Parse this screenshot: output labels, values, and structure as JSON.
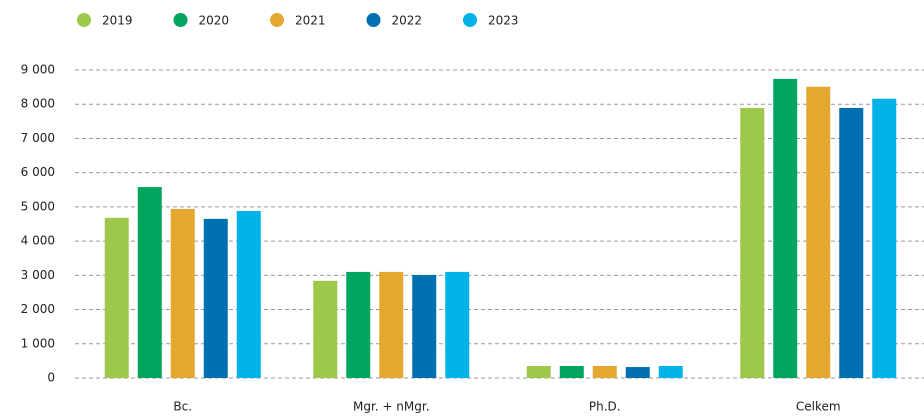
{
  "chart_data": {
    "type": "bar",
    "categories": [
      "Bc.",
      "Mgr. + nMgr.",
      "Ph.D.",
      "Celkem"
    ],
    "series": [
      {
        "name": "2019",
        "color": "#9dc84b",
        "values": [
          4680,
          2840,
          350,
          7890
        ]
      },
      {
        "name": "2020",
        "color": "#00a65d",
        "values": [
          5580,
          3100,
          350,
          8740
        ]
      },
      {
        "name": "2021",
        "color": "#e4a82e",
        "values": [
          4940,
          3100,
          350,
          8510
        ]
      },
      {
        "name": "2022",
        "color": "#0070b0",
        "values": [
          4650,
          3010,
          320,
          7890
        ]
      },
      {
        "name": "2023",
        "color": "#00b3e6",
        "values": [
          4880,
          3100,
          350,
          8160
        ]
      }
    ],
    "ylim": [
      0,
      9000
    ],
    "yticks": [
      0,
      {
        "value": 1000,
        "label": "1 000"
      },
      {
        "value": 2000,
        "label": "2 000"
      },
      {
        "value": 3000,
        "label": "3 000"
      },
      {
        "value": 4000,
        "label": "4 000"
      },
      {
        "value": 5000,
        "label": "5 000"
      },
      {
        "value": 6000,
        "label": "6 000"
      },
      {
        "value": 7000,
        "label": "7 000"
      },
      {
        "value": 8000,
        "label": "8 000"
      },
      {
        "value": 9000,
        "label": "9 000"
      }
    ],
    "grid": true,
    "legend": "top-left"
  }
}
